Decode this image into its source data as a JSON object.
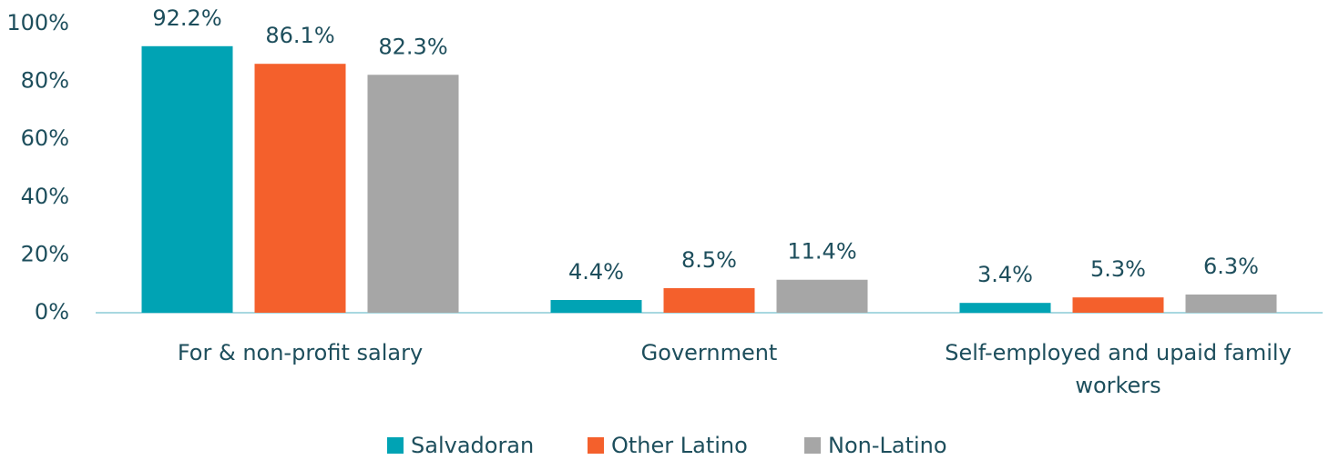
{
  "chart_data": {
    "type": "bar",
    "categories": [
      "For & non-profit salary",
      "Government",
      "Self-employed and upaid family workers"
    ],
    "series": [
      {
        "name": "Salvadoran",
        "color": "#00a3b4",
        "values": [
          92.2,
          4.4,
          3.4
        ],
        "value_labels": [
          "92.2%",
          "4.4%",
          "3.4%"
        ]
      },
      {
        "name": "Other Latino",
        "color": "#f4602c",
        "values": [
          86.1,
          8.5,
          5.3
        ],
        "value_labels": [
          "86.1%",
          "8.5%",
          "5.3%"
        ]
      },
      {
        "name": "Non-Latino",
        "color": "#a6a6a6",
        "values": [
          82.3,
          11.4,
          6.3
        ],
        "value_labels": [
          "82.3%",
          "11.4%",
          "6.3%"
        ]
      }
    ],
    "ylim": [
      0,
      100
    ],
    "yticks": [
      {
        "value": 0,
        "label": "0%"
      },
      {
        "value": 20,
        "label": "20%"
      },
      {
        "value": 40,
        "label": "40%"
      },
      {
        "value": 60,
        "label": "60%"
      },
      {
        "value": 80,
        "label": "80%"
      },
      {
        "value": 100,
        "label": "100%"
      }
    ],
    "legend": "bottom"
  }
}
